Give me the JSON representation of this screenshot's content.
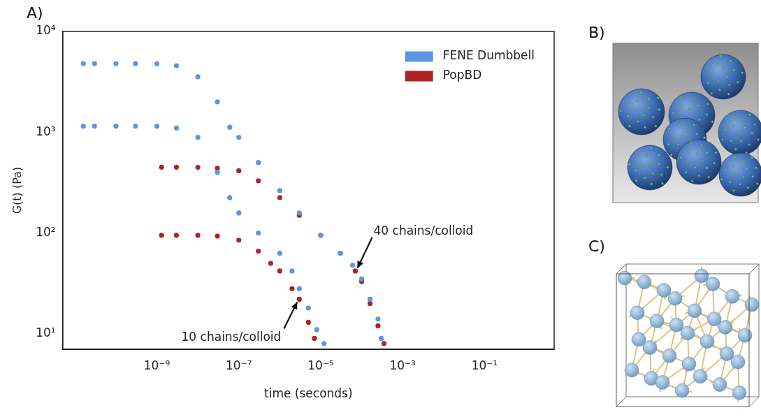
{
  "panel_labels": [
    "A)",
    "B)",
    "C)"
  ],
  "chart_data": {
    "type": "scatter",
    "x_label": "time (seconds)",
    "y_label": "G(t) (Pa)",
    "log": true,
    "grid": false,
    "legend": "upper right",
    "xlim": [
      5e-12,
      5
    ],
    "ylim": [
      7,
      10000
    ],
    "xticks": [
      {
        "value": 1e-09,
        "label": "10⁻⁹"
      },
      {
        "value": 1e-07,
        "label": "10⁻⁷"
      },
      {
        "value": 1e-05,
        "label": "10⁻⁵"
      },
      {
        "value": 0.001,
        "label": "10⁻³"
      },
      {
        "value": 0.1,
        "label": "10⁻¹"
      }
    ],
    "yticks": [
      {
        "value": 10,
        "label": "10¹"
      },
      {
        "value": 100,
        "label": "10²"
      },
      {
        "value": 1000,
        "label": "10³"
      },
      {
        "value": 10000,
        "label": "10⁴"
      }
    ],
    "series": [
      {
        "name": "FENE Dumbbell",
        "color": "#5b95e6",
        "marker": "circle",
        "x": [
          1.6e-11,
          3e-11,
          1e-10,
          3e-10,
          1e-09,
          3e-09,
          1e-08,
          3e-08,
          6e-08,
          1e-07,
          3e-07,
          1e-06,
          3e-06,
          1e-05,
          3e-05,
          6e-05,
          0.0001,
          0.00016,
          0.00025,
          0.0003,
          1.6e-11,
          3e-11,
          1e-10,
          3e-10,
          1e-09,
          3e-09,
          1e-08,
          3e-08,
          6e-08,
          1e-07,
          3e-07,
          1e-06,
          2e-06,
          3e-06,
          5e-06,
          8e-06,
          1.2e-05
        ],
        "values": [
          4800,
          4800,
          4800,
          4800,
          4780,
          4570,
          3550,
          2000,
          1120,
          890,
          500,
          263,
          158,
          95,
          63,
          48,
          35,
          22,
          14,
          9,
          1150,
          1150,
          1150,
          1150,
          1150,
          1100,
          890,
          400,
          224,
          158,
          100,
          63,
          42,
          28,
          18,
          11,
          8
        ]
      },
      {
        "name": "PopBD",
        "color": "#b22222",
        "marker": "circle",
        "x": [
          1.3e-09,
          3e-09,
          1e-08,
          3e-08,
          1e-07,
          3e-07,
          1e-06,
          3e-06,
          1e-05,
          3e-05,
          7e-05,
          0.0001,
          0.00016,
          0.00025,
          0.00035,
          1.3e-09,
          3e-09,
          1e-08,
          3e-08,
          1e-07,
          3e-07,
          6e-07,
          1e-06,
          2e-06,
          3e-06,
          5e-06,
          7e-06
        ],
        "values": [
          450,
          450,
          448,
          440,
          415,
          330,
          225,
          150,
          95,
          63,
          42,
          33,
          20,
          12,
          8,
          95,
          95,
          95,
          93,
          85,
          66,
          50,
          42,
          28,
          22,
          13,
          9
        ]
      }
    ],
    "annotations": [
      {
        "text": "40 chains/colloid",
        "x": 7e-05,
        "y": 42
      },
      {
        "text": "10 chains/colloid",
        "x": 3e-06,
        "y": 22
      }
    ]
  }
}
